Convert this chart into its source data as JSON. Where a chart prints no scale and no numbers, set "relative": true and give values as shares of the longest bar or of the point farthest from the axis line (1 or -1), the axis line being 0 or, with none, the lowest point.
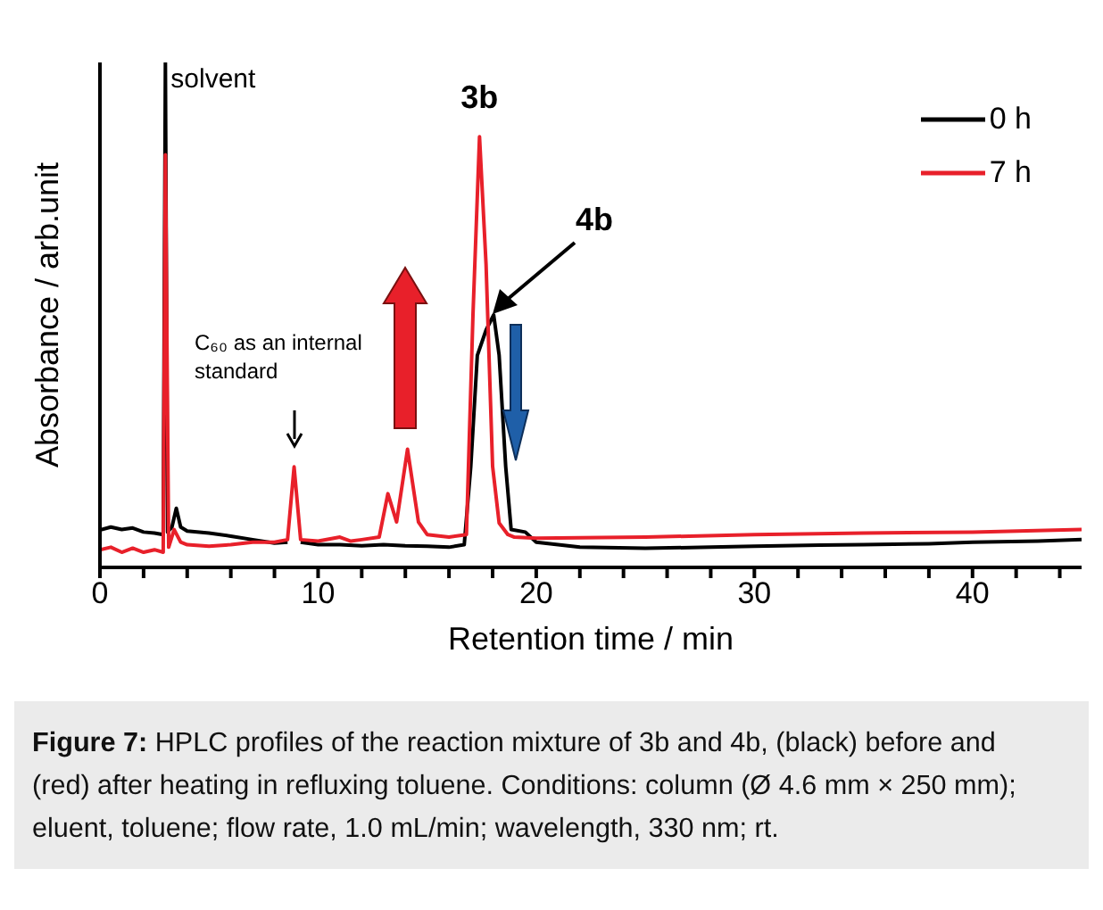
{
  "chart_data": {
    "type": "line",
    "relative": true,
    "xlabel": "Retention time / min",
    "ylabel": "Absorbance / arb.unit",
    "xlim": [
      0,
      45
    ],
    "xticks": [
      0,
      {
        "value": 2,
        "label": null
      },
      {
        "value": 4,
        "label": null
      },
      {
        "value": 6,
        "label": null
      },
      {
        "value": 8,
        "label": null
      },
      10,
      {
        "value": 12,
        "label": null
      },
      {
        "value": 14,
        "label": null
      },
      {
        "value": 16,
        "label": null
      },
      {
        "value": 18,
        "label": null
      },
      20,
      {
        "value": 22,
        "label": null
      },
      {
        "value": 24,
        "label": null
      },
      {
        "value": 26,
        "label": null
      },
      {
        "value": 28,
        "label": null
      },
      30,
      {
        "value": 32,
        "label": null
      },
      {
        "value": 34,
        "label": null
      },
      {
        "value": 36,
        "label": null
      },
      {
        "value": 38,
        "label": null
      },
      40,
      {
        "value": 42,
        "label": null
      },
      {
        "value": 44,
        "label": null
      }
    ],
    "grid": false,
    "legend": "top right",
    "marker": "none",
    "line_style": "solid",
    "series": [
      {
        "name": "0 h",
        "color": "#000000",
        "x": [
          0,
          0.5,
          1,
          1.5,
          2,
          2.5,
          2.9,
          3.0,
          3.1,
          3.3,
          3.5,
          3.7,
          4,
          5,
          6,
          7,
          8,
          8.6,
          8.9,
          9.2,
          10,
          11,
          12,
          13,
          14,
          15,
          16,
          16.7,
          17.0,
          17.3,
          17.7,
          18.05,
          18.3,
          18.6,
          18.85,
          19.5,
          20,
          22,
          25,
          28,
          30,
          33,
          35,
          38,
          40,
          43,
          45
        ],
        "values": [
          0.074,
          0.08,
          0.075,
          0.078,
          0.07,
          0.068,
          0.065,
          1.0,
          0.07,
          0.08,
          0.117,
          0.08,
          0.072,
          0.068,
          0.062,
          0.055,
          0.048,
          0.05,
          null,
          0.05,
          0.045,
          0.045,
          0.043,
          0.045,
          0.043,
          0.042,
          0.04,
          0.045,
          0.2,
          0.42,
          0.47,
          0.5,
          0.42,
          0.2,
          0.075,
          0.07,
          0.05,
          0.04,
          0.038,
          0.04,
          0.042,
          0.044,
          0.045,
          0.047,
          0.05,
          0.052,
          0.055
        ]
      },
      {
        "name": "7 h",
        "color": "#e8202a",
        "x": [
          0,
          0.5,
          1,
          1.5,
          2,
          2.5,
          2.9,
          3.0,
          3.15,
          3.4,
          3.7,
          4,
          5,
          6,
          7,
          8,
          8.6,
          8.9,
          9.2,
          10,
          11,
          11.5,
          12,
          12.8,
          13.2,
          13.6,
          14.1,
          14.6,
          15,
          16,
          16.8,
          17.1,
          17.4,
          17.7,
          18.0,
          18.3,
          18.7,
          19,
          20,
          25,
          30,
          35,
          40,
          45
        ],
        "values": [
          0.035,
          0.04,
          0.03,
          0.038,
          0.03,
          0.035,
          0.03,
          0.817,
          0.04,
          0.075,
          0.05,
          0.045,
          0.042,
          0.045,
          0.05,
          0.05,
          0.055,
          0.199,
          0.055,
          0.052,
          0.06,
          0.052,
          0.055,
          0.06,
          0.146,
          0.09,
          0.234,
          0.09,
          0.065,
          0.06,
          0.065,
          0.5,
          0.853,
          0.6,
          0.2,
          0.088,
          0.065,
          0.06,
          0.058,
          0.06,
          0.065,
          0.068,
          0.07,
          0.075
        ]
      }
    ],
    "annotations": [
      {
        "text": "solvent",
        "x": 3,
        "y": 1.0
      },
      {
        "text": "3b",
        "x": 17.4,
        "y": 0.853
      },
      "4b",
      "C₆₀ as an internal standard",
      "Figure 7: HPLC profiles of the reaction mixture of 3b and 4b, (black) before and (red) after heating in refluxing toluene. Conditions: column (Ø 4.6 mm × 250 mm); eluent, toluene; flow rate, 1.0 mL/min; wavelength, 330 nm; rt."
    ]
  }
}
